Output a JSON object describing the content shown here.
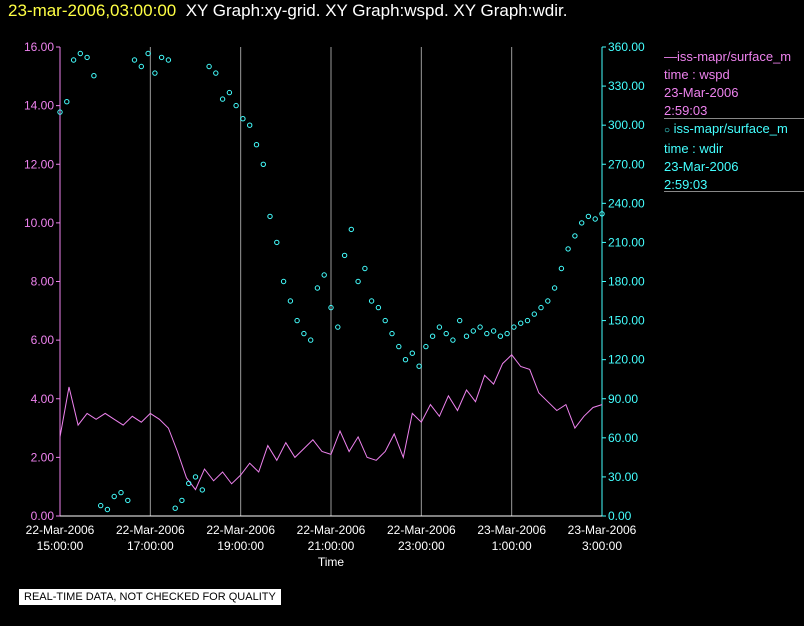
{
  "header": {
    "timestamp": "23-mar-2006,03:00:00",
    "graph_titles": "XY Graph:xy-grid.  XY Graph:wspd.  XY Graph:wdir."
  },
  "legend": [
    {
      "series": "iss-mapr/surface_m",
      "label": "time : wspd",
      "date": "23-Mar-2006",
      "time": "2:59:03",
      "color": "#ee82ee",
      "marker": "line"
    },
    {
      "series": "iss-mapr/surface_m",
      "label": "time : wdir",
      "date": "23-Mar-2006",
      "time": "2:59:03",
      "color": "#44ffff",
      "marker": "circle"
    }
  ],
  "disclaimer": "REAL-TIME DATA, NOT CHECKED FOR QUALITY",
  "chart_data": {
    "type": "line",
    "xlabel": "Time",
    "x_range_hours": [
      15.0,
      27.0
    ],
    "x_ticks": [
      {
        "date": "22-Mar-2006",
        "time": "15:00:00",
        "hour": 15
      },
      {
        "date": "22-Mar-2006",
        "time": "17:00:00",
        "hour": 17
      },
      {
        "date": "22-Mar-2006",
        "time": "19:00:00",
        "hour": 19
      },
      {
        "date": "22-Mar-2006",
        "time": "21:00:00",
        "hour": 21
      },
      {
        "date": "22-Mar-2006",
        "time": "23:00:00",
        "hour": 23
      },
      {
        "date": "23-Mar-2006",
        "time": "1:00:00",
        "hour": 25
      },
      {
        "date": "23-Mar-2006",
        "time": "3:00:00",
        "hour": 27
      }
    ],
    "left_axis": {
      "ylim": [
        0,
        16
      ],
      "ticks": [
        "0.00",
        "2.00",
        "4.00",
        "6.00",
        "8.00",
        "10.00",
        "12.00",
        "14.00",
        "16.00"
      ],
      "color": "#ee82ee"
    },
    "right_axis": {
      "ylim": [
        0,
        360
      ],
      "ticks": [
        "0.00",
        "30.00",
        "60.00",
        "90.00",
        "120.00",
        "150.00",
        "180.00",
        "210.00",
        "240.00",
        "270.00",
        "300.00",
        "330.00",
        "360.00"
      ],
      "color": "#44ffff"
    },
    "grid": "vertical",
    "series": [
      {
        "label": "time : wspd",
        "axis": "left",
        "style": "line",
        "color": "#ee82ee",
        "x": [
          15.0,
          15.2,
          15.4,
          15.6,
          15.8,
          16.0,
          16.2,
          16.4,
          16.6,
          16.8,
          17.0,
          17.2,
          17.4,
          17.6,
          17.8,
          18.0,
          18.2,
          18.4,
          18.6,
          18.8,
          19.0,
          19.2,
          19.4,
          19.6,
          19.8,
          20.0,
          20.2,
          20.4,
          20.6,
          20.8,
          21.0,
          21.2,
          21.4,
          21.6,
          21.8,
          22.0,
          22.2,
          22.4,
          22.6,
          22.8,
          23.0,
          23.2,
          23.4,
          23.6,
          23.8,
          24.0,
          24.2,
          24.4,
          24.6,
          24.8,
          25.0,
          25.2,
          25.4,
          25.6,
          25.8,
          26.0,
          26.2,
          26.4,
          26.6,
          26.8,
          27.0
        ],
        "y": [
          2.7,
          4.4,
          3.1,
          3.5,
          3.3,
          3.5,
          3.3,
          3.1,
          3.4,
          3.2,
          3.5,
          3.3,
          3.0,
          2.2,
          1.3,
          0.9,
          1.6,
          1.2,
          1.5,
          1.1,
          1.4,
          1.8,
          1.5,
          2.4,
          1.9,
          2.5,
          2.0,
          2.3,
          2.6,
          2.2,
          2.1,
          2.9,
          2.2,
          2.7,
          2.0,
          1.9,
          2.2,
          2.8,
          2.0,
          3.5,
          3.2,
          3.8,
          3.4,
          4.1,
          3.6,
          4.3,
          3.9,
          4.8,
          4.5,
          5.2,
          5.5,
          5.1,
          5.0,
          4.2,
          3.9,
          3.6,
          3.8,
          3.0,
          3.4,
          3.7,
          3.8
        ]
      },
      {
        "label": "time : wdir",
        "axis": "right",
        "style": "scatter",
        "color": "#44ffff",
        "x": [
          15.0,
          15.15,
          15.3,
          15.45,
          15.6,
          15.75,
          15.9,
          16.05,
          16.2,
          16.35,
          16.5,
          16.65,
          16.8,
          16.95,
          17.1,
          17.25,
          17.4,
          17.55,
          17.7,
          17.85,
          18.0,
          18.15,
          18.3,
          18.45,
          18.6,
          18.75,
          18.9,
          19.05,
          19.2,
          19.35,
          19.5,
          19.65,
          19.8,
          19.95,
          20.1,
          20.25,
          20.4,
          20.55,
          20.7,
          20.85,
          21.0,
          21.15,
          21.3,
          21.45,
          21.6,
          21.75,
          21.9,
          22.05,
          22.2,
          22.35,
          22.5,
          22.65,
          22.8,
          22.95,
          23.1,
          23.25,
          23.4,
          23.55,
          23.7,
          23.85,
          24.0,
          24.15,
          24.3,
          24.45,
          24.6,
          24.75,
          24.9,
          25.05,
          25.2,
          25.35,
          25.5,
          25.65,
          25.8,
          25.95,
          26.1,
          26.25,
          26.4,
          26.55,
          26.7,
          26.85,
          27.0
        ],
        "y": [
          310,
          318,
          350,
          355,
          352,
          338,
          8,
          5,
          15,
          18,
          12,
          350,
          345,
          355,
          340,
          352,
          350,
          6,
          12,
          25,
          30,
          20,
          345,
          340,
          320,
          325,
          315,
          305,
          300,
          285,
          270,
          230,
          210,
          180,
          165,
          150,
          140,
          135,
          175,
          185,
          160,
          145,
          200,
          220,
          180,
          190,
          165,
          160,
          150,
          140,
          130,
          120,
          125,
          115,
          130,
          138,
          145,
          140,
          135,
          150,
          138,
          142,
          145,
          140,
          142,
          138,
          140,
          145,
          148,
          150,
          155,
          160,
          165,
          175,
          190,
          205,
          215,
          225,
          230,
          228,
          232
        ]
      }
    ]
  }
}
